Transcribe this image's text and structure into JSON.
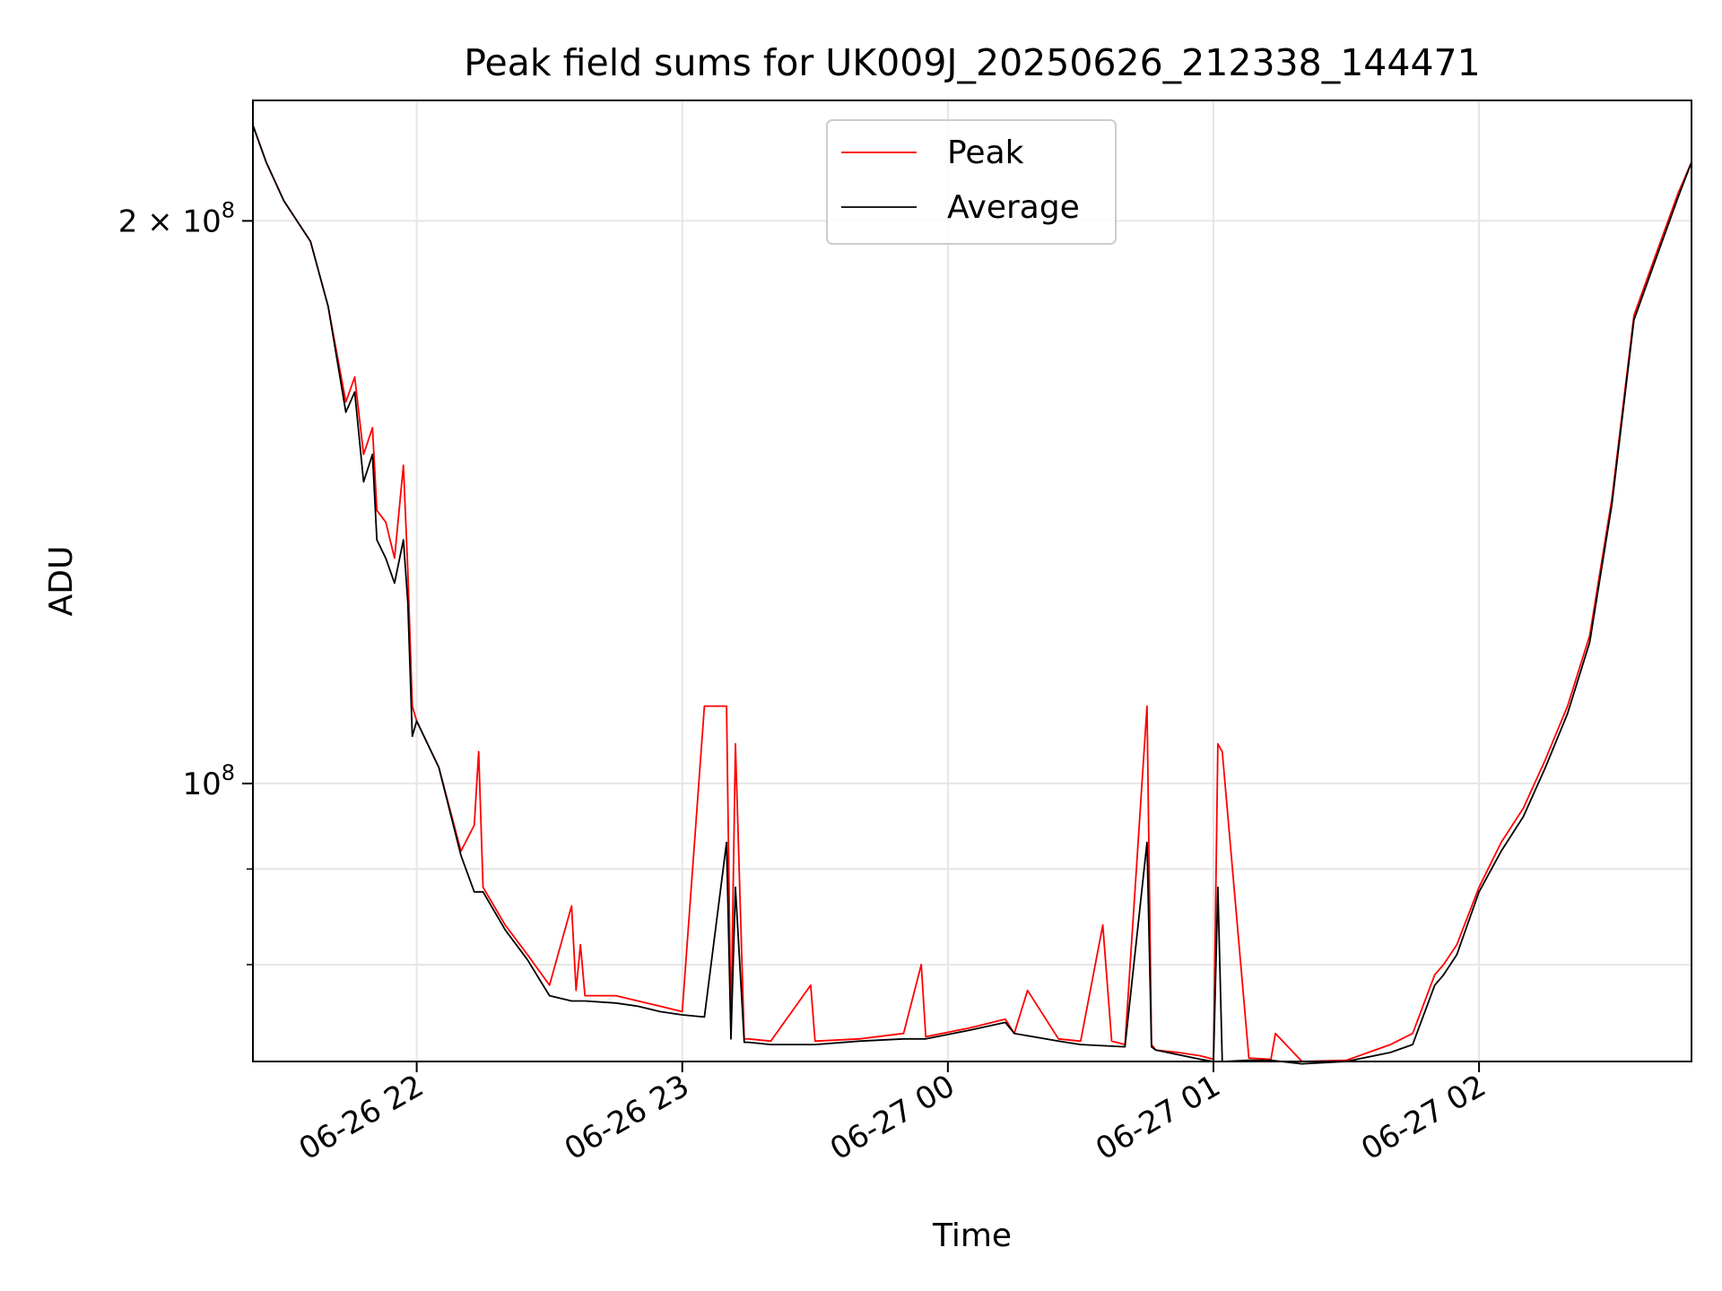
{
  "chart_data": {
    "type": "line",
    "title": "Peak field sums for UK009J_20250626_212338_144471",
    "xlabel": "Time",
    "ylabel": "ADU",
    "x_axis": "time",
    "y_scale": "log",
    "xlim": [
      "2025-06-26 21:23",
      "2025-06-27 02:48"
    ],
    "ylim": [
      71000000,
      232000000
    ],
    "x_ticks": [
      {
        "value": "2025-06-26 22:00",
        "label": "06-26 22"
      },
      {
        "value": "2025-06-26 23:00",
        "label": "06-26 23"
      },
      {
        "value": "2025-06-27 00:00",
        "label": "06-27 00"
      },
      {
        "value": "2025-06-27 01:00",
        "label": "06-27 01"
      },
      {
        "value": "2025-06-27 02:00",
        "label": "06-27 02"
      }
    ],
    "y_ticks_major": [
      {
        "value": 100000000,
        "base": "10",
        "exp": "8",
        "mult": ""
      },
      {
        "value": 200000000,
        "base": "10",
        "exp": "8",
        "mult": "2 × "
      }
    ],
    "y_ticks_minor": [
      70000000,
      80000000,
      90000000,
      300000000
    ],
    "grid": true,
    "legend": {
      "placement": "upper center",
      "entries": [
        "Peak",
        "Average"
      ]
    },
    "series": [
      {
        "name": "Peak",
        "color": "#ff0000",
        "x": [
          "2025-06-26 21:23",
          "2025-06-26 21:26",
          "2025-06-26 21:30",
          "2025-06-26 21:36",
          "2025-06-26 21:40",
          "2025-06-26 21:44",
          "2025-06-26 21:46",
          "2025-06-26 21:48",
          "2025-06-26 21:50",
          "2025-06-26 21:51",
          "2025-06-26 21:53",
          "2025-06-26 21:55",
          "2025-06-26 21:57",
          "2025-06-26 21:58",
          "2025-06-26 21:59",
          "2025-06-26 22:00",
          "2025-06-26 22:05",
          "2025-06-26 22:10",
          "2025-06-26 22:13",
          "2025-06-26 22:14",
          "2025-06-26 22:15",
          "2025-06-26 22:20",
          "2025-06-26 22:25",
          "2025-06-26 22:30",
          "2025-06-26 22:35",
          "2025-06-26 22:36",
          "2025-06-26 22:37",
          "2025-06-26 22:38",
          "2025-06-26 22:45",
          "2025-06-26 22:50",
          "2025-06-26 22:55",
          "2025-06-26 23:00",
          "2025-06-26 23:05",
          "2025-06-26 23:10",
          "2025-06-26 23:11",
          "2025-06-26 23:12",
          "2025-06-26 23:14",
          "2025-06-26 23:15",
          "2025-06-26 23:20",
          "2025-06-26 23:29",
          "2025-06-26 23:30",
          "2025-06-26 23:40",
          "2025-06-26 23:50",
          "2025-06-26 23:54",
          "2025-06-26 23:55",
          "2025-06-27 00:05",
          "2025-06-27 00:13",
          "2025-06-27 00:15",
          "2025-06-27 00:18",
          "2025-06-27 00:25",
          "2025-06-27 00:30",
          "2025-06-27 00:35",
          "2025-06-27 00:37",
          "2025-06-27 00:40",
          "2025-06-27 00:45",
          "2025-06-27 00:46",
          "2025-06-27 00:47",
          "2025-06-27 00:52",
          "2025-06-27 00:57",
          "2025-06-27 01:00",
          "2025-06-27 01:01",
          "2025-06-27 01:02",
          "2025-06-27 01:08",
          "2025-06-27 01:13",
          "2025-06-27 01:14",
          "2025-06-27 01:20",
          "2025-06-27 01:30",
          "2025-06-27 01:40",
          "2025-06-27 01:45",
          "2025-06-27 01:50",
          "2025-06-27 01:52",
          "2025-06-27 01:55",
          "2025-06-27 02:00",
          "2025-06-27 02:05",
          "2025-06-27 02:10",
          "2025-06-27 02:15",
          "2025-06-27 02:20",
          "2025-06-27 02:25",
          "2025-06-27 02:30",
          "2025-06-27 02:35",
          "2025-06-27 02:40",
          "2025-06-27 02:45",
          "2025-06-27 02:48"
        ],
        "y": [
          225000000,
          215000000,
          205000000,
          195000000,
          180000000,
          160000000,
          165000000,
          150000000,
          155000000,
          140000000,
          138000000,
          132000000,
          148000000,
          130000000,
          110000000,
          108000000,
          102000000,
          92000000,
          95000000,
          104000000,
          88000000,
          84000000,
          81000000,
          78000000,
          86000000,
          77500000,
          82000000,
          77000000,
          77000000,
          76500000,
          76000000,
          75500000,
          110000000,
          110000000,
          74000000,
          105000000,
          73000000,
          73000000,
          72800000,
          78000000,
          72800000,
          73000000,
          73500000,
          80000000,
          73200000,
          74000000,
          74800000,
          73500000,
          77500000,
          73000000,
          72800000,
          84000000,
          72800000,
          72500000,
          110000000,
          72500000,
          72000000,
          71800000,
          71500000,
          71200000,
          105000000,
          104000000,
          71300000,
          71200000,
          73500000,
          71000000,
          71100000,
          72500000,
          73500000,
          79000000,
          80000000,
          82000000,
          88000000,
          93000000,
          97000000,
          103000000,
          110000000,
          120000000,
          142000000,
          178000000,
          192000000,
          207000000,
          215000000
        ]
      },
      {
        "name": "Average",
        "color": "#000000",
        "x": [
          "2025-06-26 21:23",
          "2025-06-26 21:26",
          "2025-06-26 21:30",
          "2025-06-26 21:36",
          "2025-06-26 21:40",
          "2025-06-26 21:44",
          "2025-06-26 21:46",
          "2025-06-26 21:48",
          "2025-06-26 21:50",
          "2025-06-26 21:51",
          "2025-06-26 21:53",
          "2025-06-26 21:55",
          "2025-06-26 21:57",
          "2025-06-26 21:58",
          "2025-06-26 21:59",
          "2025-06-26 22:00",
          "2025-06-26 22:05",
          "2025-06-26 22:10",
          "2025-06-26 22:13",
          "2025-06-26 22:15",
          "2025-06-26 22:20",
          "2025-06-26 22:25",
          "2025-06-26 22:30",
          "2025-06-26 22:35",
          "2025-06-26 22:38",
          "2025-06-26 22:45",
          "2025-06-26 22:50",
          "2025-06-26 22:55",
          "2025-06-26 23:00",
          "2025-06-26 23:05",
          "2025-06-26 23:10",
          "2025-06-26 23:11",
          "2025-06-26 23:12",
          "2025-06-26 23:14",
          "2025-06-26 23:15",
          "2025-06-26 23:20",
          "2025-06-26 23:30",
          "2025-06-26 23:40",
          "2025-06-26 23:50",
          "2025-06-26 23:55",
          "2025-06-27 00:05",
          "2025-06-27 00:13",
          "2025-06-27 00:15",
          "2025-06-27 00:25",
          "2025-06-27 00:30",
          "2025-06-27 00:40",
          "2025-06-27 00:45",
          "2025-06-27 00:46",
          "2025-06-27 00:47",
          "2025-06-27 00:52",
          "2025-06-27 00:57",
          "2025-06-27 01:00",
          "2025-06-27 01:01",
          "2025-06-27 01:02",
          "2025-06-27 01:08",
          "2025-06-27 01:13",
          "2025-06-27 01:20",
          "2025-06-27 01:30",
          "2025-06-27 01:40",
          "2025-06-27 01:45",
          "2025-06-27 01:50",
          "2025-06-27 01:52",
          "2025-06-27 01:55",
          "2025-06-27 02:00",
          "2025-06-27 02:05",
          "2025-06-27 02:10",
          "2025-06-27 02:15",
          "2025-06-27 02:20",
          "2025-06-27 02:25",
          "2025-06-27 02:30",
          "2025-06-27 02:35",
          "2025-06-27 02:40",
          "2025-06-27 02:45",
          "2025-06-27 02:48"
        ],
        "y": [
          225000000,
          215000000,
          205000000,
          195000000,
          180000000,
          158000000,
          162000000,
          145000000,
          150000000,
          135000000,
          132000000,
          128000000,
          135000000,
          125000000,
          106000000,
          108000000,
          102000000,
          91500000,
          87500000,
          87500000,
          83500000,
          80500000,
          77000000,
          76500000,
          76500000,
          76300000,
          76000000,
          75500000,
          75200000,
          75000000,
          93000000,
          73000000,
          88000000,
          72700000,
          72700000,
          72500000,
          72500000,
          72800000,
          73000000,
          73000000,
          73800000,
          74500000,
          73500000,
          72800000,
          72500000,
          72300000,
          93000000,
          72300000,
          72000000,
          71600000,
          71200000,
          71000000,
          88000000,
          71000000,
          71100000,
          71100000,
          70800000,
          71000000,
          71800000,
          72500000,
          78000000,
          79000000,
          81000000,
          87500000,
          92000000,
          96000000,
          102000000,
          109000000,
          119000000,
          141000000,
          177000000,
          191000000,
          206000000,
          215000000
        ]
      }
    ]
  }
}
